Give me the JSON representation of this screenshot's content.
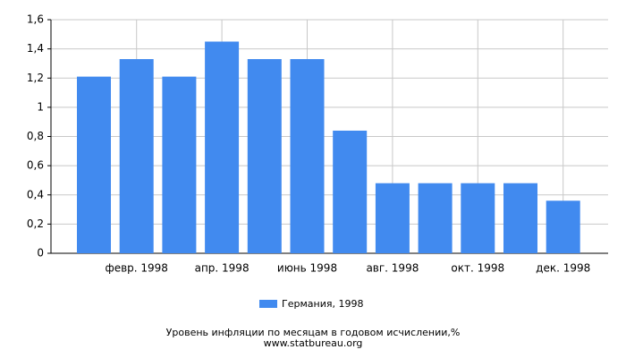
{
  "chart_data": {
    "type": "bar",
    "title": "Уровень инфляции по месяцам в годовом исчислении,%",
    "source": "www.statbureau.org",
    "categories": [
      null,
      "февр. 1998",
      null,
      "апр. 1998",
      null,
      "июнь 1998",
      null,
      "авг. 1998",
      null,
      "окт. 1998",
      null,
      "дек. 1998"
    ],
    "series": [
      {
        "name": "Германия, 1998",
        "color": "#418aef",
        "values": [
          1.21,
          1.33,
          1.21,
          1.45,
          1.33,
          1.33,
          0.84,
          0.48,
          0.48,
          0.48,
          0.48,
          0.36
        ]
      }
    ],
    "ylim": [
      0,
      1.6
    ],
    "yticks": [
      0,
      {
        "value": 0.2,
        "label": "0,2"
      },
      {
        "value": 0.4,
        "label": "0,4"
      },
      {
        "value": 0.6,
        "label": "0,6"
      },
      {
        "value": 0.8,
        "label": "0,8"
      },
      1,
      {
        "value": 1.2,
        "label": "1,2"
      },
      {
        "value": 1.4,
        "label": "1,4"
      },
      {
        "value": 1.6,
        "label": "1,6"
      }
    ],
    "grid": true
  }
}
